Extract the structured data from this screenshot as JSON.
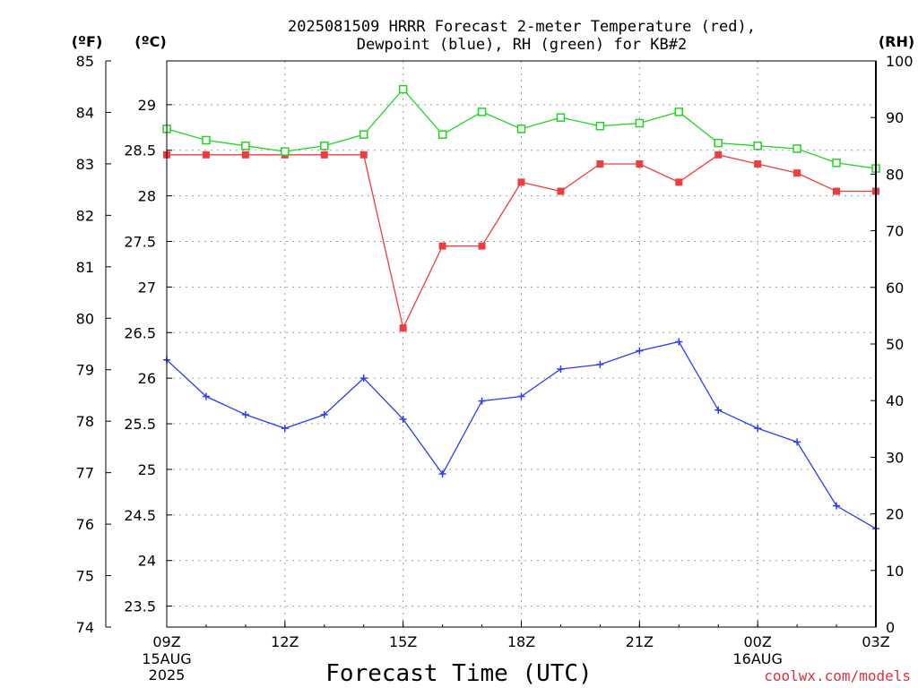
{
  "chart_data": {
    "type": "line",
    "title": "2025081509 HRRR Forecast 2-meter Temperature (red),",
    "subtitle": "Dewpoint (blue), RH (green) for KB#2",
    "xlabel": "Forecast Time (UTC)",
    "unit_labels": {
      "fahrenheit": "(ºF)",
      "celsius": "(ºC)",
      "rh": "(RH)"
    },
    "credit": "coolwx.com/models",
    "x_ticks": [
      {
        "label": "09Z",
        "sub": [
          "15AUG",
          "2025"
        ],
        "hour": 0
      },
      {
        "label": "12Z",
        "sub": [],
        "hour": 3
      },
      {
        "label": "15Z",
        "sub": [],
        "hour": 6
      },
      {
        "label": "18Z",
        "sub": [],
        "hour": 9
      },
      {
        "label": "21Z",
        "sub": [],
        "hour": 12
      },
      {
        "label": "00Z",
        "sub": [
          "16AUG"
        ],
        "hour": 15
      },
      {
        "label": "03Z",
        "sub": [],
        "hour": 18
      }
    ],
    "x": [
      "09Z",
      "10Z",
      "11Z",
      "12Z",
      "13Z",
      "14Z",
      "15Z",
      "16Z",
      "17Z",
      "18Z",
      "19Z",
      "20Z",
      "21Z",
      "22Z",
      "23Z",
      "00Z",
      "01Z",
      "02Z",
      "03Z"
    ],
    "celsius_axis": {
      "min": 23.27,
      "max": 29.48,
      "ticks": [
        23.5,
        24,
        24.5,
        25,
        25.5,
        26,
        26.5,
        27,
        27.5,
        28,
        28.5,
        29
      ]
    },
    "fahrenheit_axis": {
      "min": 74,
      "max": 85,
      "ticks": [
        74,
        75,
        76,
        77,
        78,
        79,
        80,
        81,
        82,
        83,
        84,
        85
      ]
    },
    "rh_axis": {
      "min": 0,
      "max": 100,
      "ticks": [
        0,
        10,
        20,
        30,
        40,
        50,
        60,
        70,
        80,
        90,
        100
      ]
    },
    "grid": true,
    "series": [
      {
        "name": "Temperature",
        "axis": "celsius",
        "color": "#f03c3c",
        "marker": "filled-square",
        "values": [
          28.45,
          28.45,
          28.45,
          28.45,
          28.45,
          28.45,
          26.55,
          27.45,
          27.45,
          28.15,
          28.05,
          28.35,
          28.35,
          28.15,
          28.45,
          28.35,
          28.25,
          28.05,
          28.05
        ]
      },
      {
        "name": "Dewpoint",
        "axis": "celsius",
        "color": "#2a3df0",
        "marker": "plus",
        "values": [
          26.2,
          25.8,
          25.6,
          25.45,
          25.6,
          26.0,
          25.55,
          24.95,
          25.75,
          25.8,
          26.1,
          26.15,
          26.3,
          26.4,
          25.65,
          25.45,
          25.3,
          24.6,
          24.35
        ]
      },
      {
        "name": "RH",
        "axis": "rh",
        "color": "#22d422",
        "marker": "open-square",
        "values": [
          88,
          86,
          85,
          84,
          85,
          87,
          95,
          87,
          91,
          88,
          90,
          88.5,
          89,
          91,
          85.5,
          85,
          84.5,
          82,
          81
        ]
      }
    ]
  }
}
